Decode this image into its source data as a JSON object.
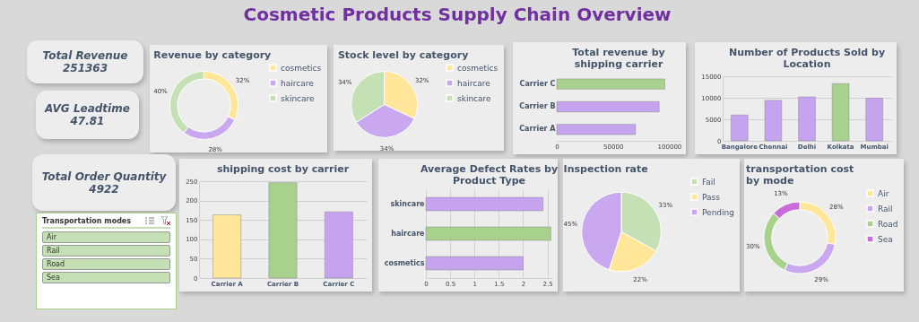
{
  "chart_data": [
    {
      "type": "other",
      "title": "Cosmetic Products Supply Chain Overview"
    },
    {
      "type": "other",
      "title": "Total Revenue",
      "annotations": [
        "251363"
      ]
    },
    {
      "type": "other",
      "title": "AVG Leadtime",
      "annotations": [
        "47.81"
      ]
    },
    {
      "type": "donut",
      "title": "Revenue by category",
      "categories": [
        "cosmetics",
        "haircare",
        "skincare"
      ],
      "values": [
        32,
        28,
        40
      ],
      "value_labels": [
        "32%",
        "28%",
        "40%"
      ],
      "colors": [
        "#ffe699",
        "#c9a8f0",
        "#c5e0b4"
      ],
      "legend": "right"
    },
    {
      "type": "pie",
      "title": "Stock level by category",
      "categories": [
        "cosmetics",
        "haircare",
        "skincare"
      ],
      "values": [
        32,
        34,
        34
      ],
      "value_labels": [
        "32%",
        "34%",
        "34%"
      ],
      "colors": [
        "#ffe699",
        "#c9a8f0",
        "#c5e0b4"
      ],
      "legend": "right"
    },
    {
      "type": "bar",
      "orientation": "horizontal",
      "title": "Total revenue by shipping carrier",
      "categories": [
        "Carrier C",
        "Carrier B",
        "Carrier A"
      ],
      "values": [
        96000,
        91000,
        70000
      ],
      "colors": [
        "#a9d18e",
        "#c5a3ef",
        "#c5a3ef"
      ],
      "xlim": [
        0,
        110000
      ],
      "xticks": [
        0,
        50000,
        100000
      ]
    },
    {
      "type": "bar",
      "title": "Number of Products Sold by Location",
      "categories": [
        "Bangalore",
        "Chennai",
        "Delhi",
        "Kolkata",
        "Mumbai"
      ],
      "values": [
        6000,
        9400,
        10200,
        13300,
        9900
      ],
      "colors": [
        "#c5a3ef",
        "#c5a3ef",
        "#c5a3ef",
        "#a9d18e",
        "#c5a3ef"
      ],
      "ylim": [
        0,
        15000
      ],
      "yticks": [
        0,
        5000,
        10000,
        15000
      ],
      "grid": "y"
    },
    {
      "type": "other",
      "title": "Total Order Quantity",
      "annotations": [
        "4922"
      ]
    },
    {
      "type": "other",
      "title": "Transportation modes",
      "annotations": [
        "Air",
        "Rail",
        "Road",
        "Sea"
      ]
    },
    {
      "type": "bar",
      "title": "shipping cost by carrier",
      "categories": [
        "Carrier A",
        "Carrier B",
        "Carrier C"
      ],
      "values": [
        163,
        246,
        171
      ],
      "colors": [
        "#ffe699",
        "#a9d18e",
        "#c5a3ef"
      ],
      "ylim": [
        0,
        250
      ],
      "yticks": [
        0,
        50,
        100,
        150,
        200,
        250
      ],
      "grid": "y"
    },
    {
      "type": "bar",
      "orientation": "horizontal",
      "title": "Average Defect Rates by Product Type",
      "categories": [
        "skincare",
        "haircare",
        "cosmetics"
      ],
      "values": [
        2.41,
        2.57,
        2.0
      ],
      "colors": [
        "#c5a3ef",
        "#a9d18e",
        "#c5a3ef"
      ],
      "xlim": [
        0,
        2.6
      ],
      "xticks": [
        0,
        0.5,
        1,
        1.5,
        2,
        2.5
      ],
      "grid": "x"
    },
    {
      "type": "pie",
      "title": "Inspection rate",
      "categories": [
        "Fail",
        "Pass",
        "Pending"
      ],
      "values": [
        33,
        22,
        45
      ],
      "value_labels": [
        "33%",
        "22%",
        "45%"
      ],
      "colors": [
        "#c5e0b4",
        "#ffe699",
        "#c9a8f0"
      ],
      "legend": "right"
    },
    {
      "type": "donut",
      "title": "transportation cost by mode",
      "categories": [
        "Air",
        "Rail",
        "Road",
        "Sea"
      ],
      "values": [
        28,
        29,
        30,
        13
      ],
      "value_labels": [
        "28%",
        "29%",
        "30%",
        "13%"
      ],
      "colors": [
        "#ffe699",
        "#c9a8f0",
        "#a9d18e",
        "#c86dd7"
      ],
      "legend": "right"
    }
  ]
}
